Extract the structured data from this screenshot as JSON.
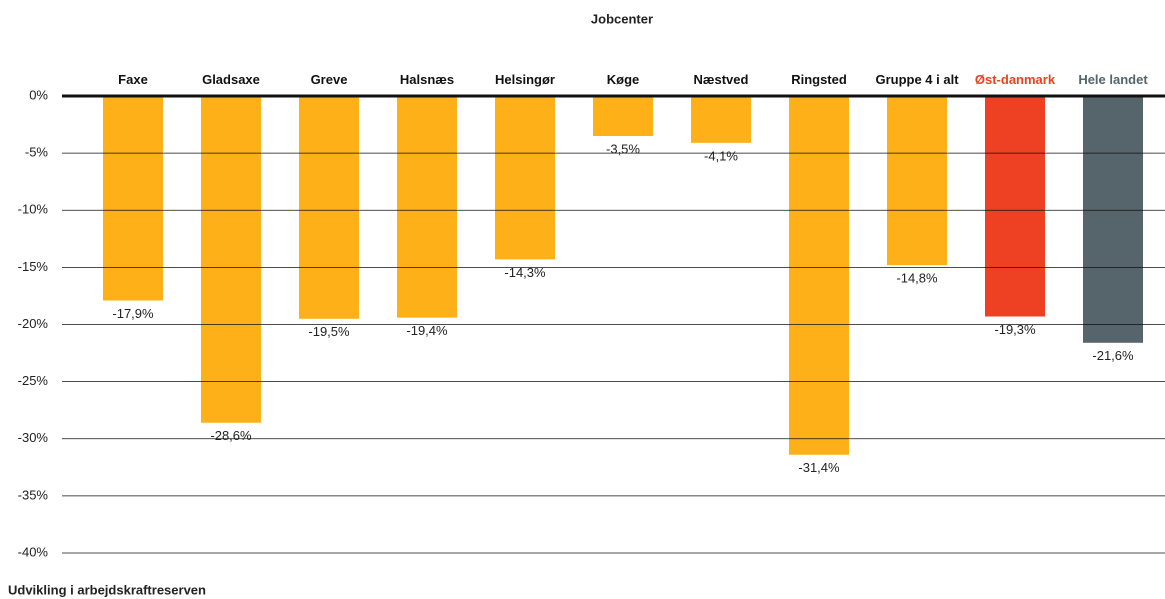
{
  "chart_data": {
    "type": "bar",
    "title": "Jobcenter",
    "x_label": "Udvikling i arbejdskraftreserven",
    "categories": [
      "Faxe",
      "Gladsaxe",
      "Greve",
      "Halsnæs",
      "Helsingør",
      "Køge",
      "Næstved",
      "Ringsted",
      "Gruppe 4 i alt",
      "Øst-danmark",
      "Hele landet"
    ],
    "values": [
      -17.9,
      -28.6,
      -19.5,
      -19.4,
      -14.3,
      -3.5,
      -4.1,
      -31.4,
      -14.8,
      -19.3,
      -21.6
    ],
    "value_labels": [
      "-17,9%",
      "-28,6%",
      "-19,5%",
      "-19,4%",
      "-14,3%",
      "-3,5%",
      "-4,1%",
      "-31,4%",
      "-14,8%",
      "-19,3%",
      "-21,6%"
    ],
    "colors": [
      "#fdb018",
      "#fdb018",
      "#fdb018",
      "#fdb018",
      "#fdb018",
      "#fdb018",
      "#fdb018",
      "#fdb018",
      "#fdb018",
      "#ee4123",
      "#56646b"
    ],
    "label_colors": [
      "#111111",
      "#111111",
      "#111111",
      "#111111",
      "#111111",
      "#111111",
      "#111111",
      "#111111",
      "#111111",
      "#ee4123",
      "#56646b"
    ],
    "ylim": [
      -40,
      0
    ],
    "yticks": [
      {
        "value": 0,
        "label": "0%"
      },
      {
        "value": -5,
        "label": "-5%"
      },
      {
        "value": -10,
        "label": "-10%"
      },
      {
        "value": -15,
        "label": "-15%"
      },
      {
        "value": -20,
        "label": "-20%"
      },
      {
        "value": -25,
        "label": "-25%"
      },
      {
        "value": -30,
        "label": "-30%"
      },
      {
        "value": -35,
        "label": "-35%"
      },
      {
        "value": -40,
        "label": "-40%"
      }
    ],
    "grid": true
  }
}
